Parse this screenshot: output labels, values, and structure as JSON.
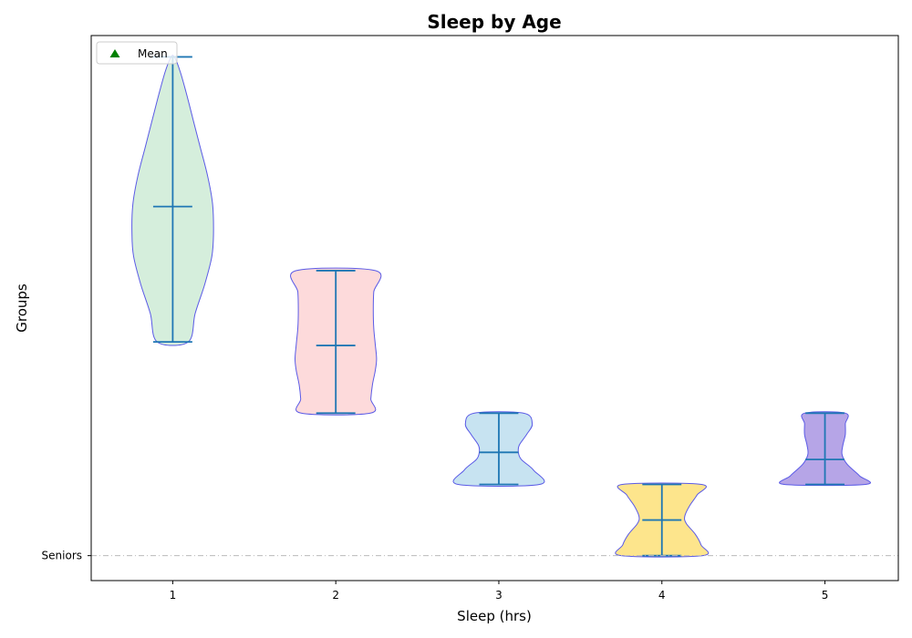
{
  "chart_data": {
    "type": "violin",
    "title": "Sleep by Age",
    "xlabel": "Sleep (hrs)",
    "ylabel": "Groups",
    "x_ticks": [
      "1",
      "2",
      "3",
      "4",
      "5"
    ],
    "y_tick_labels": [
      "Seniors"
    ],
    "y_reference": "Seniors",
    "ylim": [
      -0.35,
      7.3
    ],
    "legend": {
      "position": "top-left",
      "entries": [
        {
          "label": "Mean",
          "marker": "triangle",
          "color": "#008000"
        }
      ]
    },
    "violins": [
      {
        "x": 1,
        "min": 3,
        "max": 7,
        "mean": 4.9,
        "fill": "#d5eedc"
      },
      {
        "x": 2,
        "min": 2,
        "max": 4,
        "mean": 2.95,
        "fill": "#fddadb"
      },
      {
        "x": 3,
        "min": 1,
        "max": 2,
        "mean": 1.45,
        "fill": "#c7e3f1"
      },
      {
        "x": 4,
        "min": 0,
        "max": 1,
        "mean": 0.5,
        "fill": "#fde58c"
      },
      {
        "x": 5,
        "min": 1,
        "max": 2,
        "mean": 1.35,
        "fill": "#b6a5e7"
      }
    ],
    "colors": {
      "outline": "#5a5ae6",
      "stat_lines": "#1f77b4",
      "reference_line": "#bbbbbb",
      "mean_marker": "#008000"
    }
  }
}
